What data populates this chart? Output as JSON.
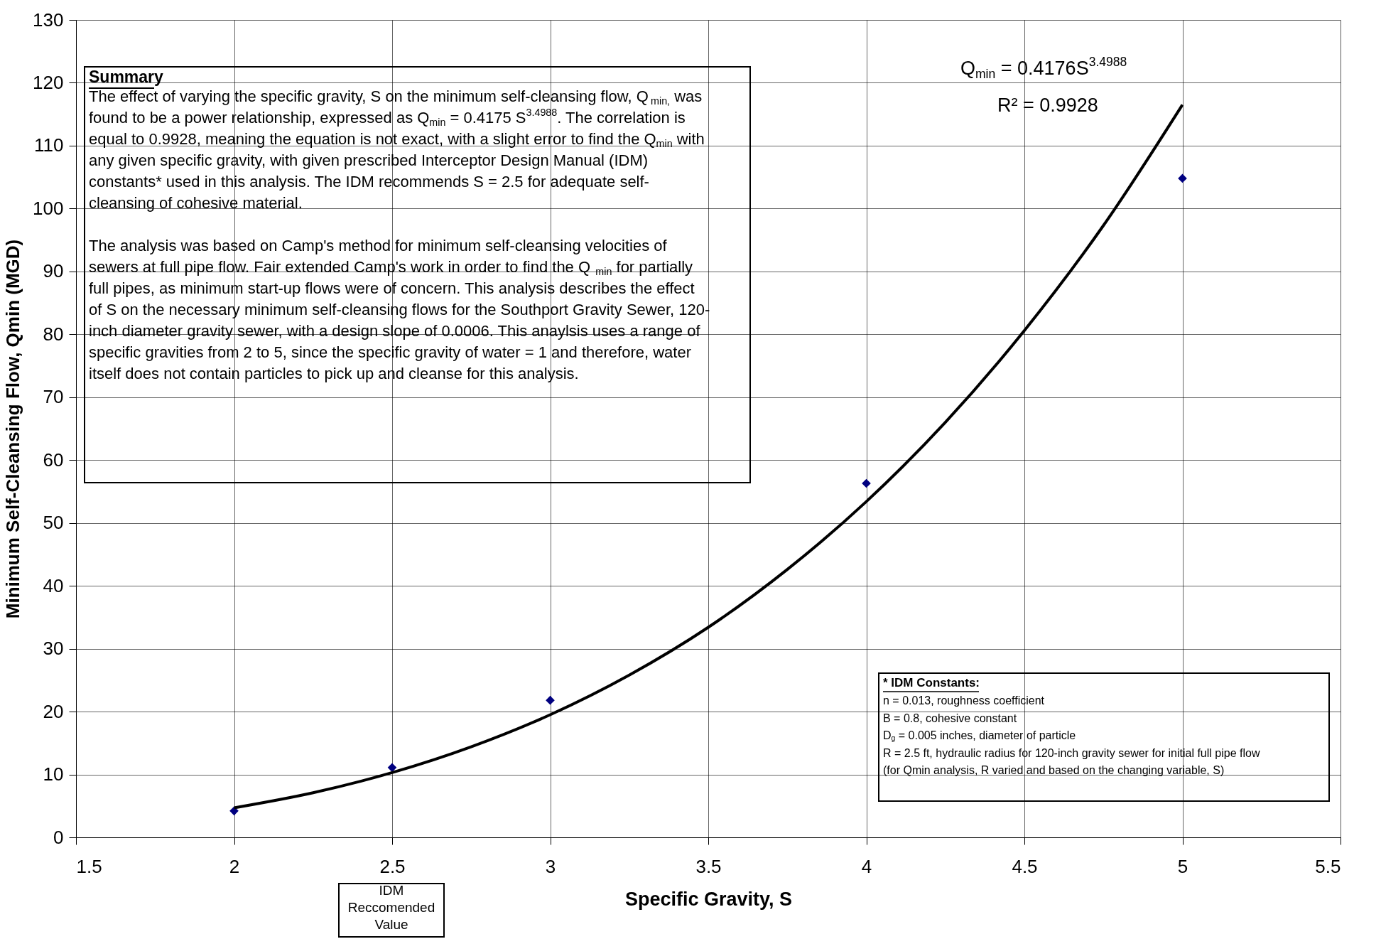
{
  "chart_data": {
    "type": "scatter",
    "xlabel": "Specific Gravity, S",
    "ylabel": "Minimum Self-Cleansing Flow, Qmin (MGD)",
    "xlim": [
      1.5,
      5.5
    ],
    "xticks": [
      1.5,
      2,
      2.5,
      3,
      3.5,
      4,
      4.5,
      5,
      5.5
    ],
    "ylim": [
      0,
      130
    ],
    "yticks": [
      0,
      10,
      20,
      30,
      40,
      50,
      60,
      70,
      80,
      90,
      100,
      110,
      120,
      130
    ],
    "grid": true,
    "legend": false,
    "series": [
      {
        "color": "#000080",
        "marker": "diamond",
        "x": [
          2,
          2.5,
          3,
          4,
          5
        ],
        "values": [
          4.2,
          11.1,
          21.8,
          56.3,
          104.8
        ]
      },
      {
        "type": "line",
        "color": "#000000",
        "line_style": "solid",
        "x": [
          2,
          2.25,
          2.5,
          2.75,
          3,
          3.25,
          3.5,
          3.75,
          4,
          4.25,
          4.5,
          4.75,
          5
        ],
        "values": [
          4.7,
          7.1,
          10.3,
          14.4,
          19.5,
          25.8,
          33.4,
          42.6,
          53.4,
          66.0,
          80.6,
          97.3,
          116.5
        ]
      }
    ],
    "annotations": [
      "Summary",
      "The effect of varying the specific gravity, S on the minimum self-cleansing flow, Q$_{min,}$ was\nfound to be a power relationship, expressed as Q$_{min}$ = 0.4175 S$^{3.4988}$. The correlation is\nequal to 0.9928, meaning the equation is not exact, with a slight error to find the Q$_{min}$ with\nany given specific gravity, with given prescribed Interceptor Design Manual (IDM)\nconstants* used in this analysis.  The IDM recommends S = 2.5 for adequate self-\ncleansing of cohesive material.\n\nThe analysis was based on Camp's method for minimum self-cleansing velocities of\nsewers at full pipe flow.  Fair extended Camp's work in order to find the Q$_{min}$ for partially\nfull pipes, as minimum start-up flows were of concern.  This analysis describes the effect\nof S on the necessary minimum self-cleansing flows for the Southport Gravity Sewer, 120-\ninch diameter gravity sewer, with a design slope of 0.0006.  This anaylsis uses a range of\nspecific gravities from 2 to 5, since the specific gravity of water = 1 and therefore, water\nitself does not contain particles to pick up and cleanse for this analysis.",
      "Q$_{min}$ = 0.4176S$^{3.4988}$",
      "R² = 0.9928",
      "* IDM Constants:",
      "n = 0.013, roughness coefficient\nB = 0.8,  cohesive constant\nD$_{g}$ = 0.005 inches, diameter of particle\nR = 2.5 ft, hydraulic radius for 120-inch gravity sewer for initial full pipe flow\n(for Qmin analysis, R varied and based on the changing variable, S)",
      "IDM\nReccomended\nValue"
    ]
  }
}
